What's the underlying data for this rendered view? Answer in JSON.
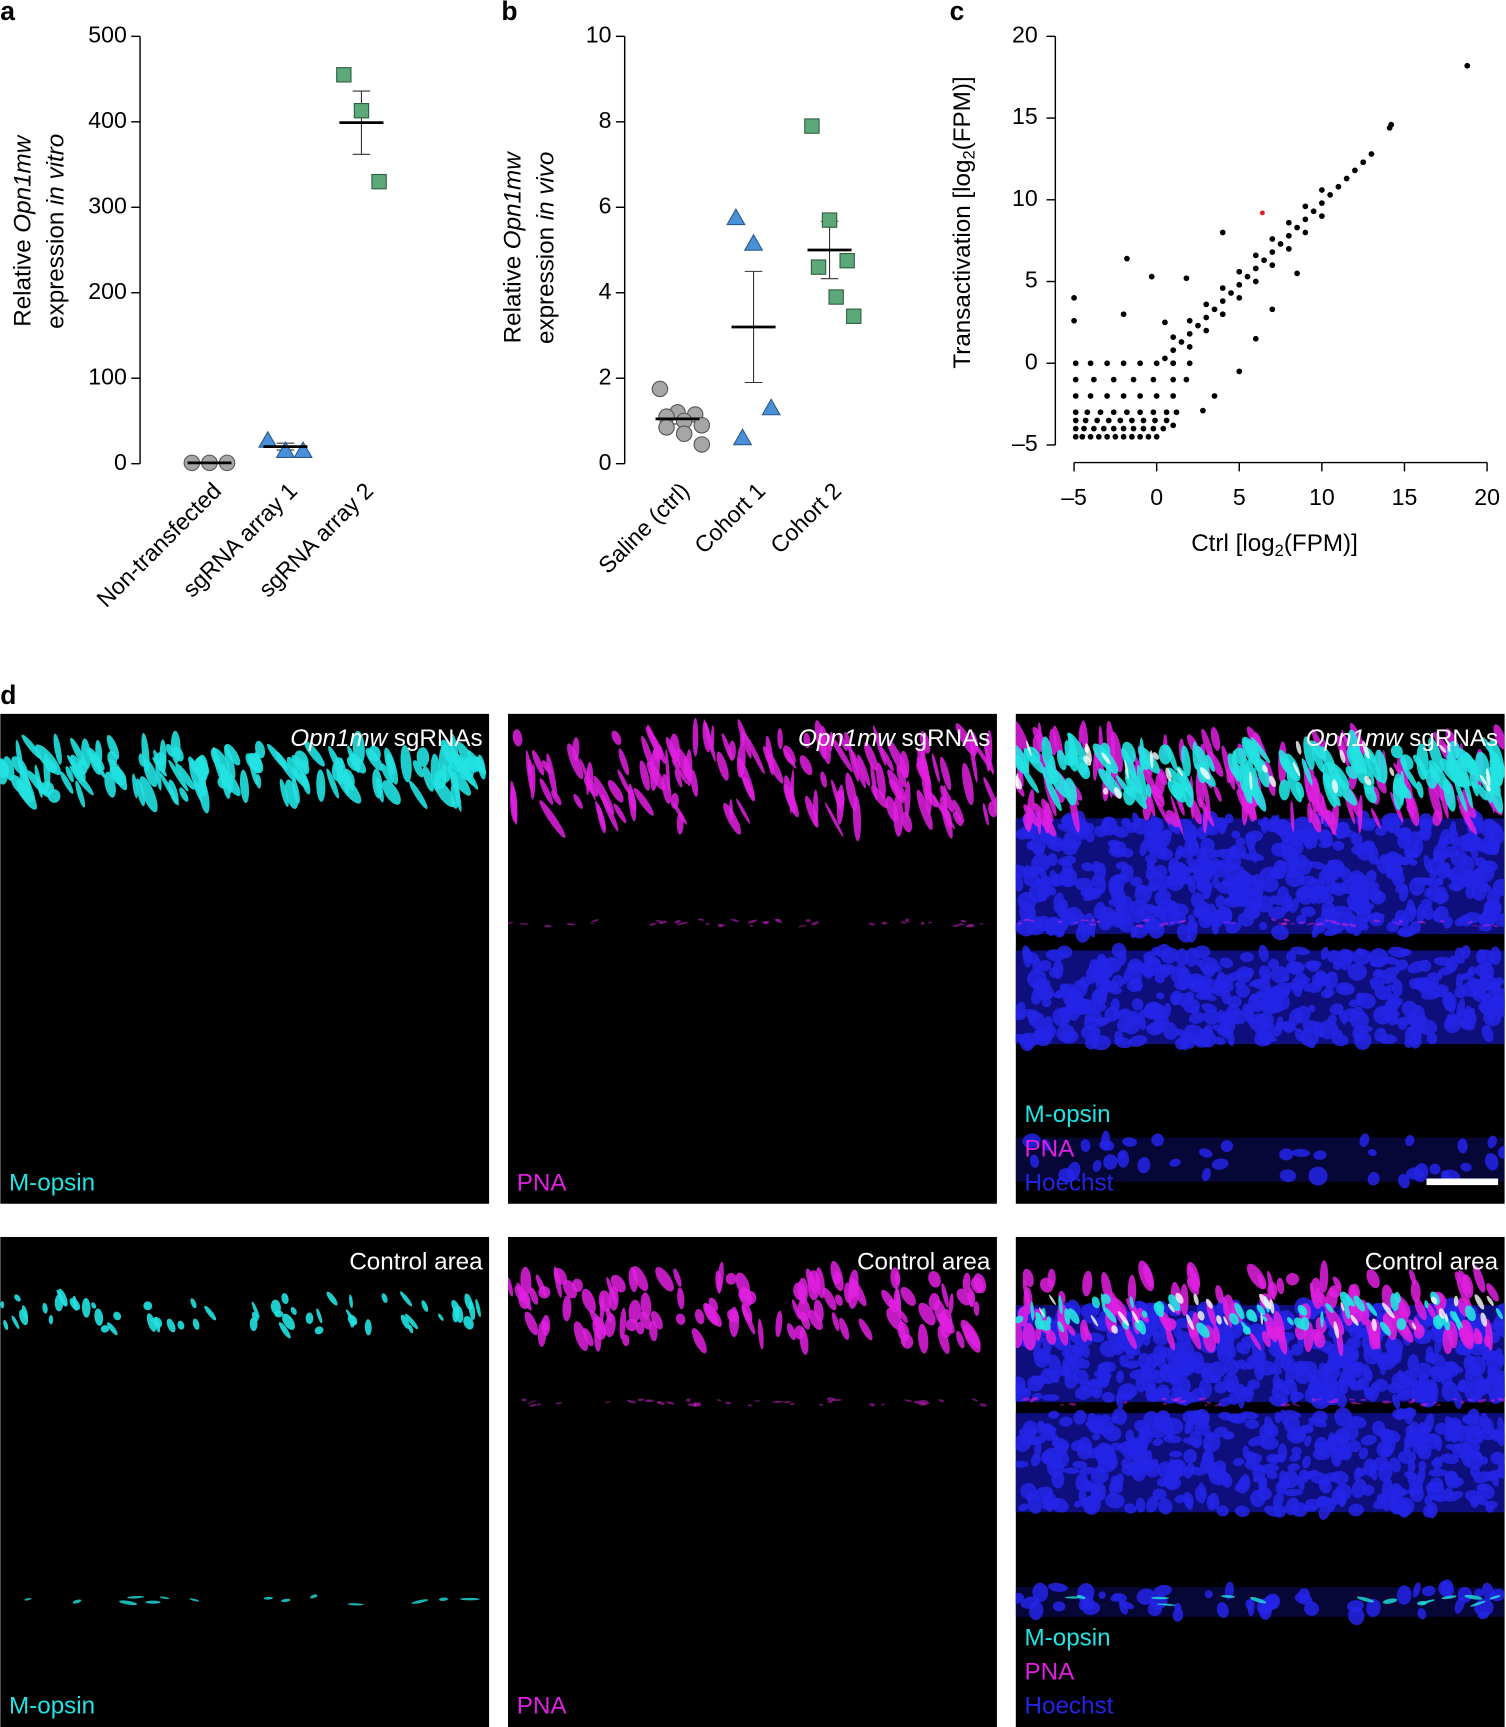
{
  "chart_data": [
    {
      "type": "dot",
      "label": "a",
      "ylabel": [
        [
          "Relative",
          "Opn1mw"
        ],
        [
          "expression",
          "in vitro"
        ]
      ],
      "categories": [
        "Non-transfected",
        "sgRNA array 1",
        "sgRNA array 2"
      ],
      "points": [
        [
          1,
          1,
          1
        ],
        [
          27,
          15,
          15
        ],
        [
          455,
          413,
          330
        ]
      ],
      "means": [
        1,
        20,
        399
      ],
      "errors": [
        0.3,
        4,
        37
      ],
      "markers": [
        "circle",
        "triangle",
        "square"
      ],
      "colors": [
        "#a6a6a6",
        "#4a90d9",
        "#5ca878"
      ],
      "ylim": [
        0,
        500
      ],
      "yticks": [
        0,
        100,
        200,
        300,
        400,
        500
      ]
    },
    {
      "type": "dot",
      "label": "b",
      "ylabel": [
        [
          "Relative",
          "Opn1mw"
        ],
        [
          "expression",
          "in vivo"
        ]
      ],
      "categories": [
        "Saline (ctrl)",
        "Cohort 1",
        "Cohort 2"
      ],
      "points": [
        [
          1.75,
          1.2,
          1.15,
          1.1,
          1.0,
          0.9,
          0.85,
          0.7,
          0.45
        ],
        [
          5.75,
          5.15,
          1.3,
          0.6
        ],
        [
          7.9,
          5.7,
          4.75,
          4.6,
          3.9,
          3.45
        ]
      ],
      "means": [
        1.05,
        3.2,
        5.0
      ],
      "errors": [
        0.12,
        1.3,
        0.67
      ],
      "markers": [
        "circle",
        "triangle",
        "square"
      ],
      "colors": [
        "#a6a6a6",
        "#4a90d9",
        "#5ca878"
      ],
      "ylim": [
        0,
        10
      ],
      "yticks": [
        0,
        2,
        4,
        6,
        8,
        10
      ]
    },
    {
      "type": "scatter",
      "label": "c",
      "xlabel": [
        "Ctrl [log",
        "2",
        "(FPM)]"
      ],
      "ylabel": [
        "Transactivation [log",
        "2",
        "(FPM)]"
      ],
      "x": [
        -4.9,
        -4.5,
        -4,
        -3.5,
        -3,
        -2.5,
        -2,
        -1.5,
        -1,
        -0.5,
        0,
        -4.9,
        -4.4,
        -3.8,
        -3.2,
        -2.6,
        -2,
        -1.4,
        -0.8,
        -0.2,
        0.4,
        -4.9,
        -4.3,
        -3.6,
        -2.9,
        -2.2,
        -1.5,
        -0.8,
        -0.1,
        0.6,
        -4.9,
        -4.2,
        -3.4,
        -2.6,
        -1.8,
        -1,
        -0.2,
        0.6,
        1.2,
        -4.9,
        -4,
        -3,
        -2,
        -1,
        0,
        1,
        -4.9,
        -3.8,
        -2.6,
        -1.4,
        -0.2,
        1,
        1.8,
        -4.9,
        -4,
        -3,
        -2,
        -1,
        0,
        1,
        2,
        0.5,
        1,
        1.5,
        2,
        2.5,
        3,
        3.5,
        4,
        4.5,
        5,
        5.5,
        6,
        6.5,
        7,
        7.5,
        8,
        8.5,
        9,
        9.5,
        10,
        10.5,
        11,
        11.5,
        12,
        12.5,
        13,
        1,
        2,
        3,
        4,
        5,
        6,
        7,
        8,
        9,
        10,
        1,
        2,
        3,
        4,
        5,
        6,
        7,
        8,
        9,
        10,
        -1.8,
        -5,
        -5,
        -0.3,
        1.8,
        3.5,
        1,
        5,
        2.8,
        7,
        8.5,
        14.2,
        14.1,
        18.8,
        4,
        6,
        -2,
        0.5
      ],
      "y": [
        -4.5,
        -4.5,
        -4.5,
        -4.5,
        -4.5,
        -4.5,
        -4.5,
        -4.5,
        -4.5,
        -4.5,
        -4.5,
        -4,
        -4,
        -4,
        -4,
        -4,
        -4,
        -4,
        -4,
        -4,
        -4,
        -3.5,
        -3.5,
        -3.5,
        -3.5,
        -3.5,
        -3.5,
        -3.5,
        -3.5,
        -3.5,
        -3,
        -3,
        -3,
        -3,
        -3,
        -3,
        -3,
        -3,
        -3,
        -2,
        -2,
        -2,
        -2,
        -2,
        -2,
        -2,
        -1,
        -1,
        -1,
        -1,
        -1,
        -1,
        -1,
        0,
        0,
        0,
        0,
        0,
        0,
        0,
        0,
        0.3,
        0.8,
        1.3,
        1.8,
        2.3,
        2.8,
        3.3,
        3.8,
        4.3,
        4.8,
        5.3,
        5.8,
        6.3,
        6.8,
        7.3,
        7.8,
        8.3,
        8.8,
        9.3,
        9.8,
        10.3,
        10.8,
        11.3,
        11.8,
        12.3,
        12.8,
        1.6,
        2.6,
        3.6,
        4.6,
        5.6,
        6.6,
        7.6,
        8.6,
        9.6,
        10.6,
        0,
        1,
        2,
        3,
        4,
        5,
        6,
        7,
        8,
        9,
        6.4,
        4,
        2.6,
        5.3,
        5.2,
        -2,
        -3.8,
        -0.5,
        -2.9,
        3.3,
        5.5,
        14.6,
        14.4,
        18.2,
        8,
        1.5,
        3,
        2.5
      ],
      "color": "#000000",
      "highlight": {
        "x": [
          6.4
        ],
        "y": [
          9.2
        ],
        "color": "#e02020"
      },
      "xlim": [
        -5,
        20
      ],
      "ylim": [
        -5,
        20
      ],
      "xticks": [
        {
          "value": -5,
          "label": "–5"
        },
        0,
        5,
        10,
        15,
        20
      ],
      "yticks": [
        {
          "value": -5,
          "label": "–5"
        },
        0,
        5,
        10,
        15,
        20
      ]
    }
  ],
  "panel_d": {
    "label": "d",
    "rows": [
      {
        "title": [
          "Opn1mw",
          "sgRNAs"
        ]
      },
      {
        "title": [
          "Control area"
        ]
      }
    ],
    "channels": [
      "M-opsin",
      "PNA",
      "Hoechst"
    ]
  }
}
